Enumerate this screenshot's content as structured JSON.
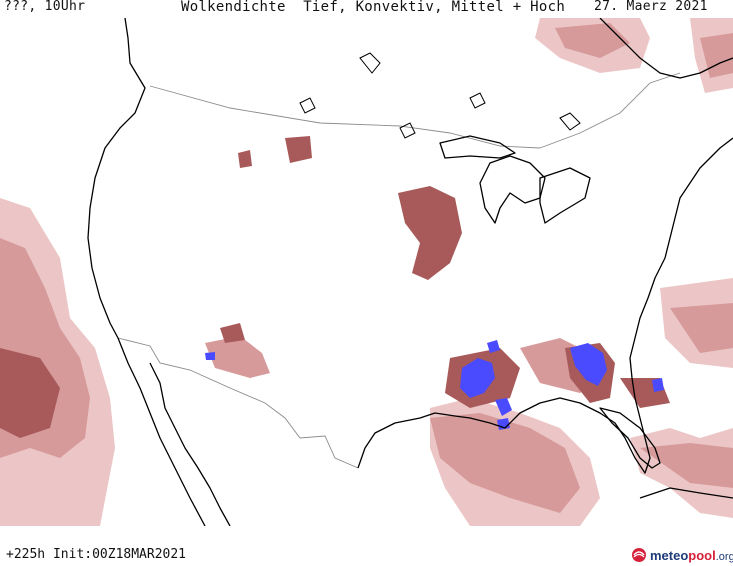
{
  "header": {
    "left_label": "???, 10Uhr",
    "title": "Wolkendichte  Tief, Konvektiv, Mittel + Hoch",
    "date": "27. Maerz 2021"
  },
  "footer": {
    "run_info": "+225h Init:00Z18MAR2021",
    "logo": {
      "brand_a": "meteo",
      "brand_b": "pool",
      "brand_c": ".org"
    }
  },
  "map": {
    "region": "Continental United States, northern Mexico, southern Canada",
    "colors": {
      "background": "#ffffff",
      "cloud_light": "#ecc6c6",
      "cloud_medium": "#d79a9a",
      "cloud_dense": "#a85a5a",
      "cloud_very_dense": "#8a3a3a",
      "convective": "#4a4aff",
      "coastline": "#000000",
      "borders": "#8c8c8c"
    }
  }
}
